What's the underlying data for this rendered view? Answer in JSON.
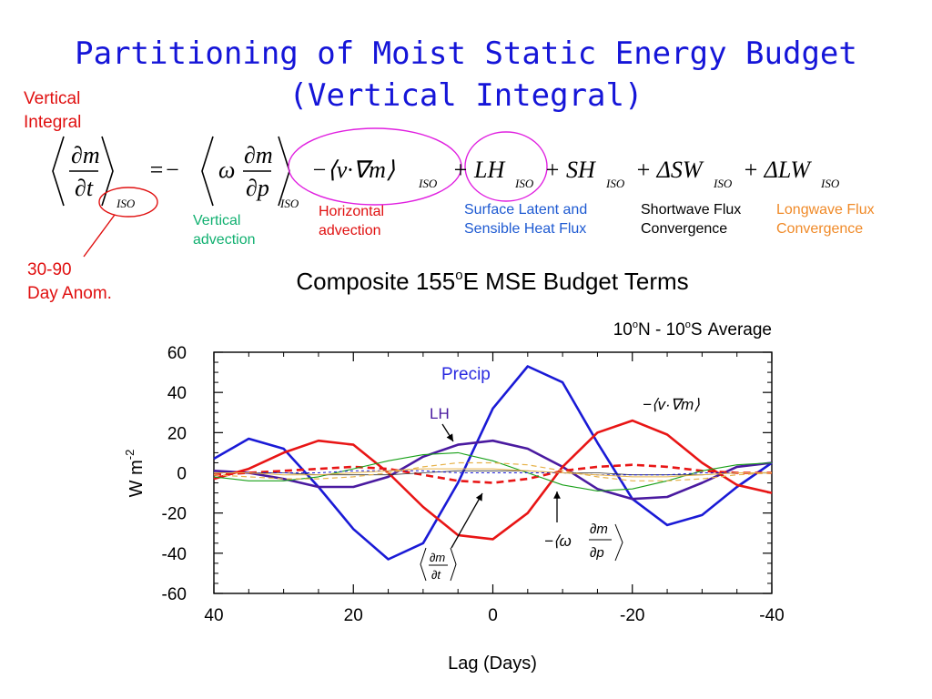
{
  "slide": {
    "title_line1": "Partitioning of Moist Static Energy Budget",
    "title_line2": "(Vertical Integral)"
  },
  "equation": {
    "subscript": "ISO",
    "lhs_num": "∂m",
    "lhs_den": "∂t",
    "rhs_eq": "=−",
    "omega": "ω",
    "vert_num": "∂m",
    "vert_den": "∂p",
    "horiz_term": "−⟨v·∇m⟩",
    "lh_term": "+ LH",
    "sh_term": "+ SH",
    "sw_term": "+ ΔSW",
    "lw_term": "+ ΔLW"
  },
  "annotations": {
    "vertical_integral": [
      "Vertical",
      "Integral"
    ],
    "day_anom": [
      "30-90",
      "Day Anom."
    ],
    "vertical_advection": [
      "Vertical",
      "advection"
    ],
    "horizontal_advection": [
      "Horizontal",
      "advection"
    ],
    "surface_flux": [
      "Surface Latent and",
      "Sensible Heat Flux"
    ],
    "shortwave": [
      "Shortwave Flux",
      "Convergence"
    ],
    "longwave": [
      "Longwave Flux",
      "Convergence"
    ]
  },
  "colors": {
    "title": "#1515d8",
    "red": "#e01010",
    "green": "#10b070",
    "blue_label": "#1e5ad2",
    "orange": "#f08a28",
    "magenta": "#e020e0",
    "precip": "#1a1ad6",
    "lh": "#4a1aa0",
    "tendency": "#e81515",
    "vertical": "#18a018",
    "longwave": "#e6b24a"
  },
  "chart_data": {
    "type": "line",
    "title": "Composite 155°E MSE Budget Terms",
    "title_base": "Composite 155",
    "title_sup": "o",
    "title_rest": "E MSE Budget Terms",
    "subtitle": "10°N - 10°S Average",
    "subtitle_parts": [
      "10",
      "o",
      "N - 10",
      "o",
      "S",
      "Average"
    ],
    "xlabel": "Lag (Days)",
    "ylabel": "W m",
    "ylabel_sup": "-2",
    "xlim": [
      40,
      -40
    ],
    "ylim": [
      -60,
      60
    ],
    "xticks": [
      40,
      20,
      0,
      -20,
      -40
    ],
    "xtick_labels": [
      "40",
      "20",
      "0",
      "-20",
      "-40"
    ],
    "yticks": [
      60,
      40,
      20,
      0,
      -20,
      -40,
      -60
    ],
    "ytick_labels": [
      "60",
      "40",
      "20",
      "0",
      "-20",
      "-40",
      "-60"
    ],
    "x": [
      40,
      35,
      30,
      25,
      20,
      15,
      10,
      5,
      0,
      -5,
      -10,
      -15,
      -20,
      -25,
      -30,
      -35,
      -40
    ],
    "series": [
      {
        "key": "precip",
        "color": "#1a1ad6",
        "dash": "",
        "width": 2.6,
        "values": [
          7,
          17,
          12,
          -7,
          -28,
          -43,
          -35,
          -5,
          32,
          53,
          45,
          15,
          -13,
          -26,
          -21,
          -7,
          5
        ]
      },
      {
        "key": "lh",
        "color": "#4a1aa0",
        "dash": "",
        "width": 2.6,
        "values": [
          1,
          0,
          -3,
          -7,
          -7,
          -2,
          8,
          14,
          16,
          12,
          3,
          -8,
          -13,
          -12,
          -5,
          3,
          5
        ]
      },
      {
        "key": "tendency",
        "color": "#e81515",
        "dash": "",
        "width": 2.6,
        "values": [
          -3,
          2,
          10,
          16,
          14,
          0,
          -17,
          -31,
          -33,
          -20,
          3,
          20,
          26,
          19,
          5,
          -6,
          -10
        ]
      },
      {
        "key": "horizontal",
        "color": "#e81515",
        "dash": "8,5",
        "width": 2.6,
        "values": [
          -1,
          0,
          1,
          2,
          3,
          2,
          -1,
          -4,
          -5,
          -3,
          1,
          3,
          4,
          3,
          1,
          0,
          0
        ]
      },
      {
        "key": "vertical",
        "color": "#18a018",
        "dash": "",
        "width": 1.1,
        "values": [
          -2,
          -4,
          -4,
          -2,
          2,
          6,
          9,
          10,
          6,
          0,
          -6,
          -9,
          -8,
          -4,
          1,
          4,
          5
        ]
      },
      {
        "key": "shortwave",
        "color": "#333333",
        "dash": "",
        "width": 0.8,
        "values": [
          0,
          0,
          0,
          -1,
          -1,
          -1,
          0,
          1,
          1,
          1,
          0,
          0,
          -1,
          -1,
          -1,
          0,
          0
        ]
      },
      {
        "key": "sensible",
        "color": "#1a1ad6",
        "dash": "3,3",
        "width": 1.0,
        "values": [
          0,
          0,
          0,
          0,
          1,
          1,
          1,
          0,
          0,
          0,
          0,
          -1,
          -1,
          -1,
          0,
          0,
          0
        ]
      },
      {
        "key": "longwave",
        "color": "#e6b24a",
        "dash": "6,4",
        "width": 1.2,
        "values": [
          -1,
          -2,
          -3,
          -3,
          -2,
          0,
          3,
          5,
          5,
          4,
          1,
          -2,
          -4,
          -4,
          -3,
          -1,
          0
        ]
      },
      {
        "key": "longwave2",
        "color": "#e6b24a",
        "dash": "",
        "width": 1.0,
        "values": [
          0,
          0,
          -1,
          -1,
          0,
          1,
          2,
          2,
          2,
          1,
          0,
          -1,
          -2,
          -2,
          -1,
          0,
          0
        ]
      }
    ],
    "annotations": {
      "precip": "Precip",
      "lh": "LH",
      "horiz_math": "−⟨v·∇m⟩",
      "vert_math_omega": "−⟨ω",
      "vert_math_num": "∂m",
      "vert_math_den": "∂p",
      "tend_num": "∂m",
      "tend_den": "∂t"
    }
  }
}
